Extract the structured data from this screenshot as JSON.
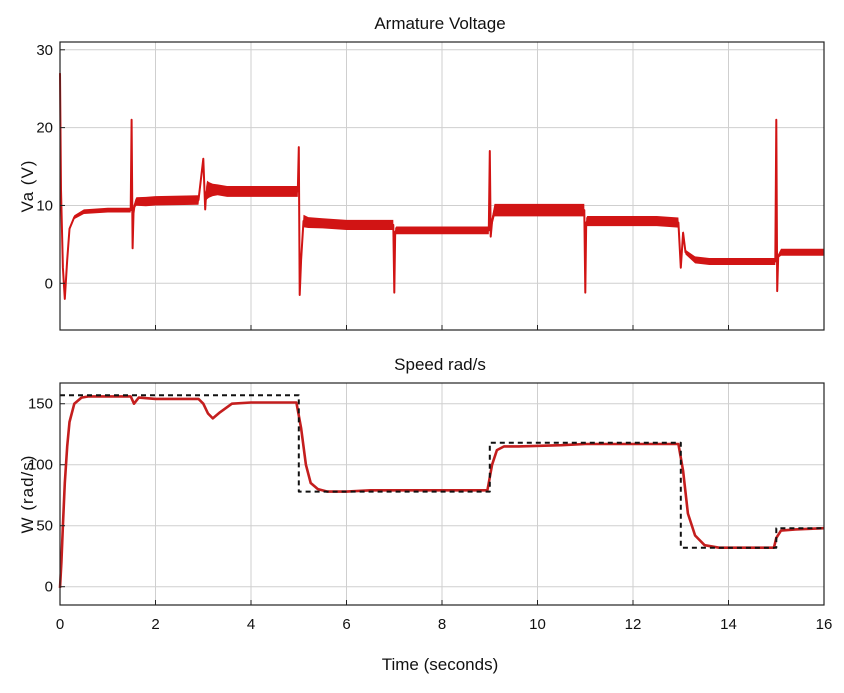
{
  "chart_data": [
    {
      "type": "line",
      "title": "Armature Voltage",
      "xlabel": "",
      "ylabel": "Va (V)",
      "xlim": [
        0,
        16
      ],
      "ylim": [
        -6,
        31
      ],
      "x_ticks": [
        "0",
        "2",
        "4",
        "6",
        "8",
        "10",
        "12",
        "14",
        "16"
      ],
      "y_ticks": [
        {
          "value": 0,
          "label": "0"
        },
        {
          "value": 10,
          "label": "10"
        },
        {
          "value": 20,
          "label": "20"
        },
        {
          "value": 30,
          "label": "30"
        }
      ],
      "grid": true,
      "series": [
        {
          "color": "#d11414",
          "style": "band",
          "x": [
            0,
            0.02,
            0.06,
            0.1,
            0.15,
            0.2,
            0.3,
            0.5,
            1.0,
            1.48,
            1.5,
            1.52,
            1.54,
            1.56,
            1.58,
            1.6,
            1.8,
            2.0,
            2.9,
            3.0,
            3.04,
            3.06,
            3.08,
            3.12,
            3.2,
            3.3,
            3.5,
            4.0,
            4.8,
            4.98,
            5.0,
            5.02,
            5.05,
            5.1,
            5.2,
            5.5,
            6.0,
            6.98,
            7.0,
            7.02,
            7.04,
            7.1,
            7.5,
            8.5,
            8.98,
            9.0,
            9.02,
            9.05,
            9.1,
            9.3,
            9.6,
            10.0,
            10.98,
            11.0,
            11.02,
            11.04,
            11.1,
            12.5,
            12.95,
            13.0,
            13.05,
            13.1,
            13.3,
            13.6,
            14.5,
            14.98,
            15.0,
            15.02,
            15.04,
            15.1,
            15.5,
            16
          ],
          "y": [
            27,
            12,
            2,
            -2,
            3,
            7,
            8.5,
            9.2,
            9.4,
            9.4,
            21,
            4.5,
            9,
            10,
            10.3,
            10.5,
            10.5,
            10.6,
            10.7,
            16,
            9.5,
            11.5,
            12,
            12,
            12,
            12,
            11.8,
            11.8,
            11.8,
            11.8,
            17.5,
            -1.5,
            3,
            8,
            7.8,
            7.7,
            7.5,
            7.5,
            -1.2,
            6.6,
            6.8,
            6.8,
            6.8,
            6.8,
            6.8,
            17,
            6,
            8,
            9.4,
            9.4,
            9.4,
            9.4,
            9.4,
            -1.2,
            7.8,
            8,
            8,
            8,
            7.8,
            2,
            6.5,
            4,
            3,
            2.8,
            2.8,
            2.8,
            21,
            -1,
            3.5,
            4,
            4,
            4
          ],
          "band_width": [
            0.2,
            0.2,
            0.2,
            0.2,
            0.3,
            0.4,
            0.5,
            0.6,
            0.6,
            0.6,
            0.2,
            0.2,
            0.4,
            0.8,
            1.0,
            1.1,
            1.2,
            1.2,
            1.2,
            0.2,
            0.3,
            1.8,
            2.4,
            2.0,
            1.6,
            1.4,
            1.4,
            1.4,
            1.4,
            1.4,
            0.2,
            0.2,
            0.4,
            1.6,
            1.4,
            1.3,
            1.3,
            1.3,
            0.2,
            1.0,
            1.0,
            1.0,
            1.0,
            1.0,
            1.0,
            0.2,
            0.4,
            1.2,
            1.6,
            1.6,
            1.6,
            1.6,
            1.6,
            0.2,
            1.2,
            1.3,
            1.3,
            1.3,
            1.3,
            0.3,
            0.6,
            0.6,
            0.9,
            0.9,
            0.9,
            0.9,
            0.2,
            0.2,
            0.5,
            0.9,
            0.9,
            0.9
          ]
        }
      ]
    },
    {
      "type": "line",
      "title": "Speed rad/s",
      "xlabel": "Time (seconds)",
      "ylabel": "W (rad/s)",
      "xlim": [
        0,
        16
      ],
      "ylim": [
        -15,
        167
      ],
      "x_ticks": [
        "0",
        "2",
        "4",
        "6",
        "8",
        "10",
        "12",
        "14",
        "16"
      ],
      "y_ticks": [
        {
          "value": 0,
          "label": "0"
        },
        {
          "value": 50,
          "label": "50"
        },
        {
          "value": 100,
          "label": "100"
        },
        {
          "value": 150,
          "label": "150"
        }
      ],
      "grid": true,
      "series": [
        {
          "color": "#c41e1e",
          "style": "solid",
          "x": [
            0,
            0.03,
            0.06,
            0.1,
            0.15,
            0.2,
            0.3,
            0.45,
            0.6,
            1.48,
            1.55,
            1.65,
            2.0,
            2.9,
            3.0,
            3.1,
            3.2,
            3.35,
            3.6,
            4.0,
            4.95,
            5.05,
            5.15,
            5.25,
            5.4,
            5.6,
            6.0,
            6.5,
            8.95,
            9.05,
            9.15,
            9.3,
            9.6,
            10.5,
            11.0,
            11.2,
            12.0,
            12.95,
            13.05,
            13.15,
            13.3,
            13.5,
            13.8,
            14.95,
            15.0,
            15.1,
            15.4,
            16
          ],
          "y": [
            -1,
            20,
            50,
            85,
            115,
            135,
            150,
            155,
            156,
            156,
            150,
            155,
            154,
            154,
            150,
            142,
            138,
            143,
            150,
            151,
            151,
            130,
            100,
            85,
            80,
            78,
            78,
            79,
            79,
            100,
            112,
            115,
            115,
            116,
            117,
            117,
            117,
            117,
            95,
            60,
            42,
            34,
            32,
            32,
            40,
            46,
            47,
            48
          ]
        },
        {
          "color": "#111111",
          "style": "dashed",
          "x": [
            0,
            0.03,
            0.03,
            5.0,
            5.0,
            9.0,
            9.0,
            13.0,
            13.0,
            15.0,
            15.0,
            16
          ],
          "y": [
            157,
            157,
            157,
            157,
            78,
            78,
            118,
            118,
            32,
            32,
            48,
            48
          ]
        }
      ]
    }
  ]
}
